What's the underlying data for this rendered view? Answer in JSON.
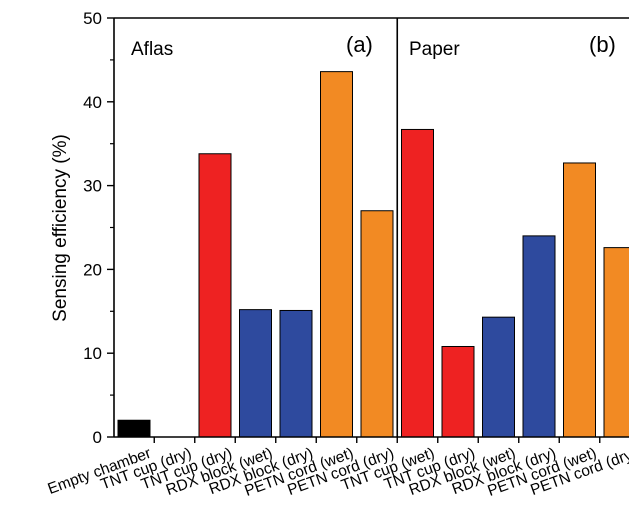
{
  "chart_data": {
    "type": "bar",
    "ylabel": "Sensing efficiency (%)",
    "xlabel": "",
    "ylim": [
      0,
      50
    ],
    "yticks": [
      0,
      10,
      20,
      30,
      40,
      50
    ],
    "grid": false,
    "panels": [
      {
        "tag": "(a)",
        "label": "Aflas"
      },
      {
        "tag": "(b)",
        "label": "Paper"
      }
    ],
    "categories": [
      "Empty chamber",
      "TNT cup (dry)",
      "TNT cup (dry)",
      "RDX block (wet)",
      "RDX block (dry)",
      "PETN cord (wet)",
      "PETN cord (dry)",
      "TNT cup (wet)",
      "TNT cup (dry)",
      "RDX block (wet)",
      "RDX block (dry)",
      "PETN cord (wet)",
      "PETN cord (dry)"
    ],
    "values": [
      2.0,
      0.0,
      33.8,
      15.2,
      15.1,
      43.6,
      27.0,
      36.7,
      10.8,
      14.3,
      24.0,
      32.7,
      22.6
    ],
    "bar_colors": [
      "#000000",
      "#000000",
      "#ee2222",
      "#2e4a9e",
      "#2e4a9e",
      "#f28a23",
      "#f28a23",
      "#ee2222",
      "#ee2222",
      "#2e4a9e",
      "#2e4a9e",
      "#f28a23",
      "#f28a23"
    ],
    "divider_after_index": 6
  }
}
